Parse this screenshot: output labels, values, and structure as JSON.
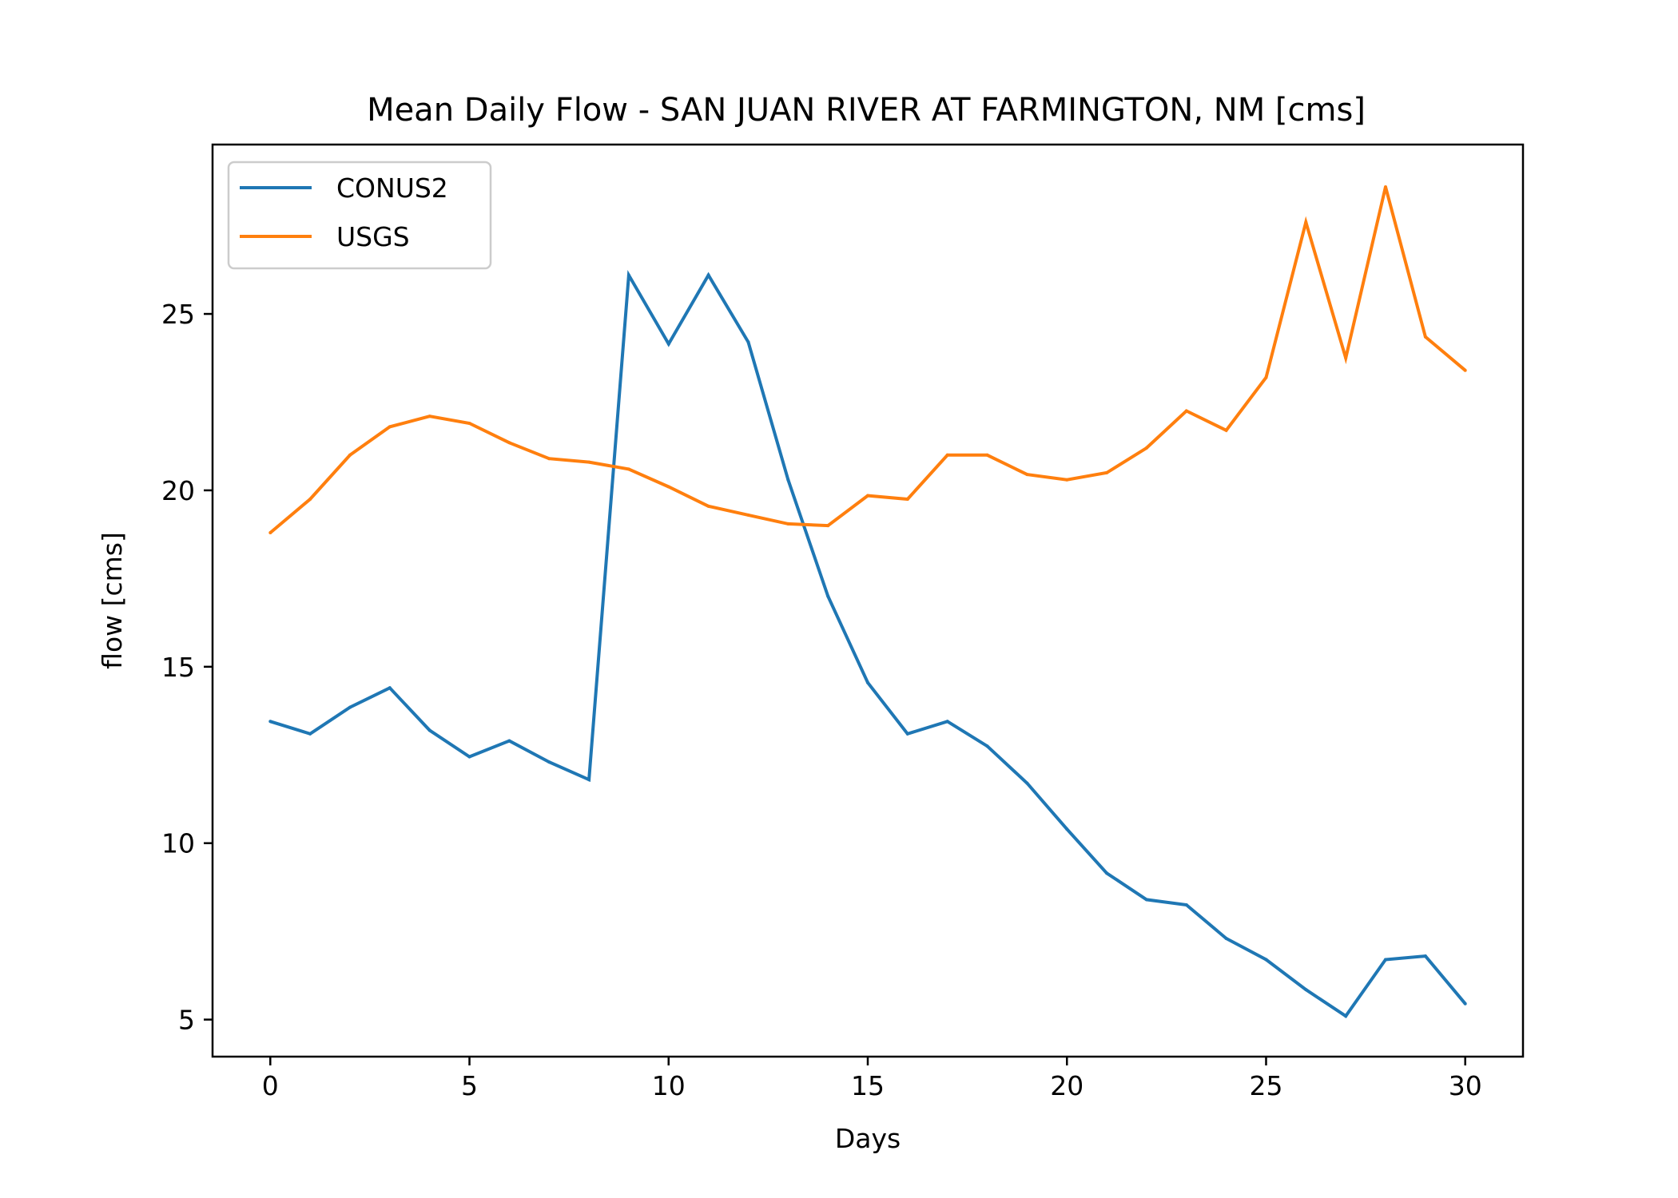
{
  "chart_data": {
    "type": "line",
    "title": "Mean Daily Flow - SAN JUAN RIVER AT FARMINGTON, NM [cms]",
    "xlabel": "Days",
    "ylabel": "flow [cms]",
    "xlim": [
      -1.45,
      31.45
    ],
    "ylim": [
      3.95,
      29.8
    ],
    "x_ticks": [
      0,
      5,
      10,
      15,
      20,
      25,
      30
    ],
    "y_ticks": [
      5,
      10,
      15,
      20,
      25
    ],
    "x": [
      0,
      1,
      2,
      3,
      4,
      5,
      6,
      7,
      8,
      9,
      10,
      11,
      12,
      13,
      14,
      15,
      16,
      17,
      18,
      19,
      20,
      21,
      22,
      23,
      24,
      25,
      26,
      27,
      28,
      29,
      30
    ],
    "series": [
      {
        "name": "CONUS2",
        "color": "#1f77b4",
        "values": [
          13.45,
          13.1,
          13.85,
          14.4,
          13.2,
          12.45,
          12.9,
          12.3,
          11.8,
          26.1,
          24.15,
          26.1,
          24.2,
          20.3,
          17.0,
          14.55,
          13.1,
          13.45,
          12.75,
          11.7,
          10.4,
          9.15,
          8.4,
          8.25,
          7.3,
          6.7,
          5.85,
          5.1,
          6.7,
          6.8,
          5.45
        ]
      },
      {
        "name": "USGS",
        "color": "#ff7f0e",
        "values": [
          18.8,
          19.75,
          21.0,
          21.8,
          22.1,
          21.9,
          21.35,
          20.9,
          20.8,
          20.6,
          20.1,
          19.55,
          19.3,
          19.05,
          19.0,
          19.85,
          19.75,
          21.0,
          21.0,
          20.45,
          20.3,
          20.5,
          21.2,
          22.25,
          21.7,
          23.2,
          27.6,
          23.75,
          28.6,
          24.35,
          23.4
        ]
      }
    ],
    "legend": {
      "placement": "upper-left",
      "entries": [
        "CONUS2",
        "USGS"
      ]
    },
    "grid": false
  }
}
